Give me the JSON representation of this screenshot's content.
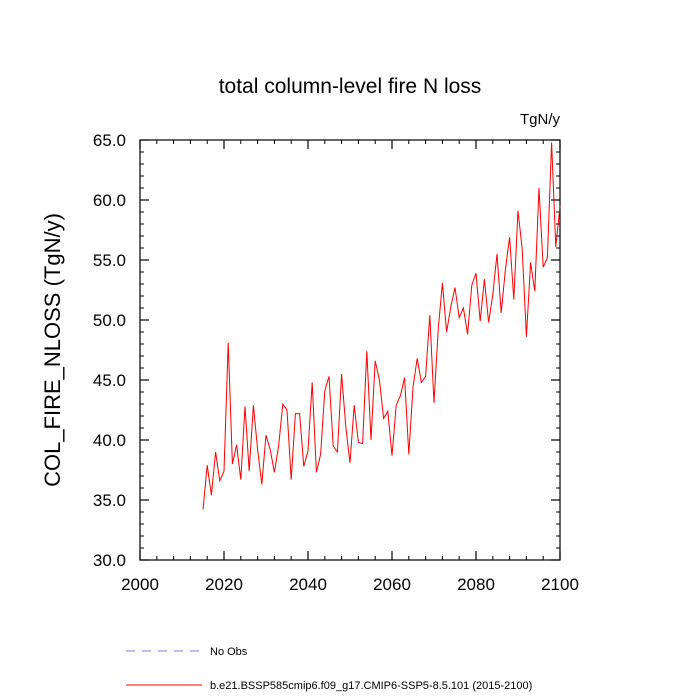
{
  "chart_data": {
    "type": "line",
    "title": "total column-level fire N loss",
    "units": "TgN/y",
    "ylabel": "COL_FIRE_NLOSS  (TgN/y)",
    "xlabel": "",
    "xlim": [
      2000,
      2100
    ],
    "ylim": [
      30,
      65
    ],
    "x_ticks": [
      2000,
      2020,
      2040,
      2060,
      2080,
      2100
    ],
    "y_ticks": [
      30.0,
      35.0,
      40.0,
      45.0,
      50.0,
      55.0,
      60.0,
      65.0
    ],
    "x_tick_labels": [
      "2000",
      "2020",
      "2040",
      "2060",
      "2080",
      "2100"
    ],
    "y_tick_labels": [
      "30.0",
      "35.0",
      "40.0",
      "45.0",
      "50.0",
      "55.0",
      "60.0",
      "65.0"
    ],
    "grid": false,
    "legend_placement": "bottom",
    "series": [
      {
        "name": "b.e21.BSSP585cmip6.f09_g17.CMIP6-SSP5-8.5.101 (2015-2100)",
        "color": "#ff0000",
        "style": "solid",
        "x": [
          2015,
          2016,
          2017,
          2018,
          2019,
          2020,
          2021,
          2022,
          2023,
          2024,
          2025,
          2026,
          2027,
          2028,
          2029,
          2030,
          2031,
          2032,
          2033,
          2034,
          2035,
          2036,
          2037,
          2038,
          2039,
          2040,
          2041,
          2042,
          2043,
          2044,
          2045,
          2046,
          2047,
          2048,
          2049,
          2050,
          2051,
          2052,
          2053,
          2054,
          2055,
          2056,
          2057,
          2058,
          2059,
          2060,
          2061,
          2062,
          2063,
          2064,
          2065,
          2066,
          2067,
          2068,
          2069,
          2070,
          2071,
          2072,
          2073,
          2074,
          2075,
          2076,
          2077,
          2078,
          2079,
          2080,
          2081,
          2082,
          2083,
          2084,
          2085,
          2086,
          2087,
          2088,
          2089,
          2090,
          2091,
          2092,
          2093,
          2094,
          2095,
          2096,
          2097,
          2098,
          2099,
          2100
        ],
        "values": [
          34.2,
          37.9,
          35.4,
          39.0,
          36.6,
          37.4,
          48.1,
          38.0,
          39.6,
          36.7,
          42.8,
          37.4,
          42.9,
          39.2,
          36.3,
          40.4,
          39.2,
          37.3,
          39.5,
          43.0,
          42.5,
          36.7,
          42.2,
          42.2,
          37.8,
          39.1,
          44.8,
          37.3,
          38.8,
          44.1,
          45.3,
          39.5,
          39.0,
          45.5,
          41.1,
          38.1,
          42.9,
          39.8,
          39.7,
          47.4,
          40.0,
          46.6,
          45.0,
          41.8,
          42.4,
          38.7,
          42.9,
          43.7,
          45.2,
          38.8,
          44.4,
          46.8,
          44.8,
          45.3,
          50.4,
          43.1,
          49.2,
          53.1,
          49.0,
          51.1,
          52.7,
          50.2,
          51.0,
          48.8,
          52.9,
          53.9,
          49.9,
          53.4,
          49.8,
          52.1,
          55.5,
          50.6,
          54.2,
          56.9,
          51.7,
          59.1,
          55.9,
          48.6,
          54.8,
          52.4,
          61.0,
          54.4,
          55.2,
          64.8,
          56.1,
          59.5
        ]
      }
    ],
    "legend": [
      {
        "label": "No Obs",
        "color": "#7b7bdf",
        "style": "dashed"
      },
      {
        "label": "b.e21.BSSP585cmip6.f09_g17.CMIP6-SSP5-8.5.101 (2015-2100)",
        "color": "#ff0000",
        "style": "solid"
      }
    ]
  }
}
